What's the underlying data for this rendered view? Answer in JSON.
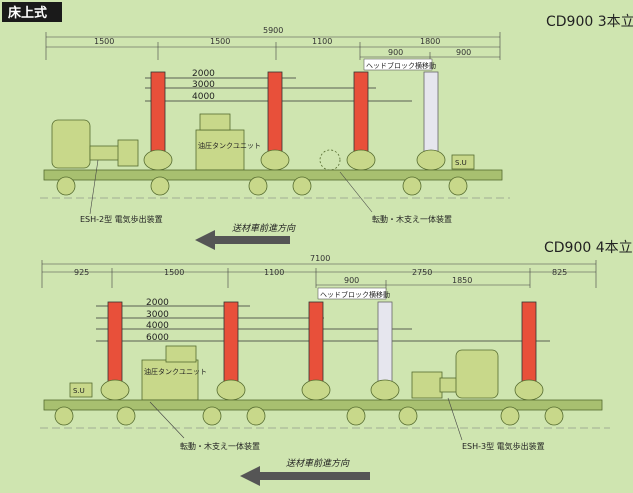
{
  "badge": "床上式",
  "sections": [
    {
      "title": "CD900 3本立",
      "total_dim": "5900",
      "segments": [
        "1500",
        "1500",
        "1100",
        "1800"
      ],
      "sub_segments": [
        "900",
        "900"
      ],
      "heights": [
        "2000",
        "3000",
        "4000"
      ],
      "notes": {
        "head_block": "ヘッドブロック横移動",
        "tank": "油圧タンクユニット",
        "su": "S.U",
        "drive": "ESH-2型  電気歩出装置",
        "support": "転動・木支え一体装置",
        "direction": "送材車前進方向"
      }
    },
    {
      "title": "CD900 4本立",
      "total_dim": "7100",
      "segments": [
        "925",
        "1500",
        "1100",
        "2750",
        "825"
      ],
      "sub_segments": [
        "900",
        "1850"
      ],
      "heights": [
        "2000",
        "3000",
        "4000",
        "6000"
      ],
      "notes": {
        "head_block": "ヘッドブロック横移動",
        "tank": "油圧タンクユニット",
        "su": "S.U",
        "drive": "ESH-3型  電気歩出装置",
        "support": "転動・木支え一体装置",
        "direction": "送材車前進方向"
      }
    }
  ],
  "colors": {
    "post": "#e8503a",
    "post_ghost": "#e6e6ee",
    "machine": "#c8d88a",
    "frame": "#a8c070",
    "bg": "#cfe5b0"
  }
}
